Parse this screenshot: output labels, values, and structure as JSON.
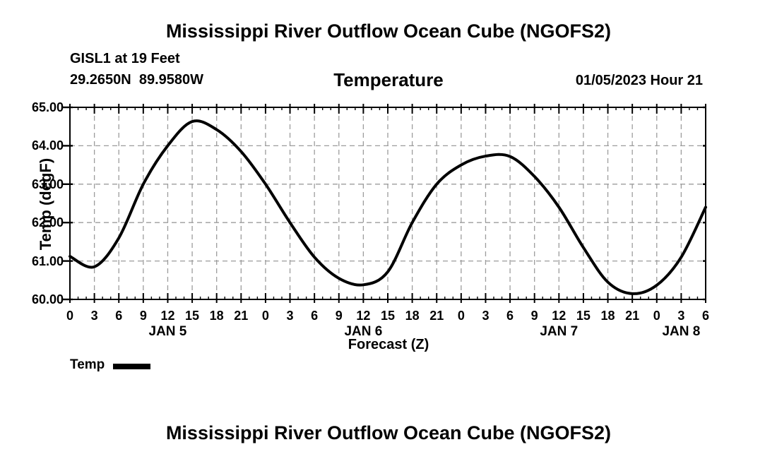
{
  "page": {
    "title_top": "Mississippi River Outflow Ocean Cube (NGOFS2)",
    "title_bottom": "Mississippi River Outflow Ocean Cube (NGOFS2)"
  },
  "subheader": {
    "station": "GISL1 at 19 Feet",
    "location": "29.2650N  89.9580W",
    "panel_title": "Temperature",
    "cycle": "01/05/2023 Hour 21"
  },
  "legend": {
    "label": "Temp",
    "color": "#000000"
  },
  "chart_data": {
    "type": "line",
    "title": "Temperature",
    "xlabel": "Forecast (Z)",
    "ylabel": "Temp (degF)",
    "xlim_hours": [
      0,
      78
    ],
    "ylim": [
      60,
      65
    ],
    "x_tick_step_hours": 3,
    "x_minor_tick_step_hours": 1,
    "grid": "dashed",
    "grid_color": "#9c9c9c",
    "line_color": "#000000",
    "line_width": 4,
    "yticks": [
      {
        "value": 60,
        "label": "60.00"
      },
      {
        "value": 61,
        "label": "61.00"
      },
      {
        "value": 62,
        "label": "62.00"
      },
      {
        "value": 63,
        "label": "63.00"
      },
      {
        "value": 64,
        "label": "64.00"
      },
      {
        "value": 65,
        "label": "65.00"
      }
    ],
    "x_hours": [
      0,
      3,
      6,
      9,
      12,
      15,
      18,
      21,
      24,
      27,
      30,
      33,
      36,
      39,
      42,
      45,
      48,
      51,
      54,
      57,
      60,
      63,
      66,
      69,
      72,
      75,
      78
    ],
    "xtick_labels": [
      "0",
      "3",
      "6",
      "9",
      "12",
      "15",
      "18",
      "21",
      "0",
      "3",
      "6",
      "9",
      "12",
      "15",
      "18",
      "21",
      "0",
      "3",
      "6",
      "9",
      "12",
      "15",
      "18",
      "21",
      "0",
      "3",
      "6"
    ],
    "day_labels": [
      {
        "label": "JAN 5",
        "center_hour": 12
      },
      {
        "label": "JAN 6",
        "center_hour": 36
      },
      {
        "label": "JAN 7",
        "center_hour": 60
      },
      {
        "label": "JAN 8",
        "center_hour": 75
      }
    ],
    "series": [
      {
        "name": "Temp",
        "units": "degF",
        "values": [
          61.12,
          60.85,
          61.6,
          63.0,
          64.0,
          64.63,
          64.42,
          63.85,
          63.0,
          62.0,
          61.1,
          60.55,
          60.38,
          60.72,
          62.0,
          63.0,
          63.5,
          63.73,
          63.72,
          63.2,
          62.4,
          61.35,
          60.45,
          60.15,
          60.37,
          61.1,
          62.4
        ]
      }
    ]
  }
}
